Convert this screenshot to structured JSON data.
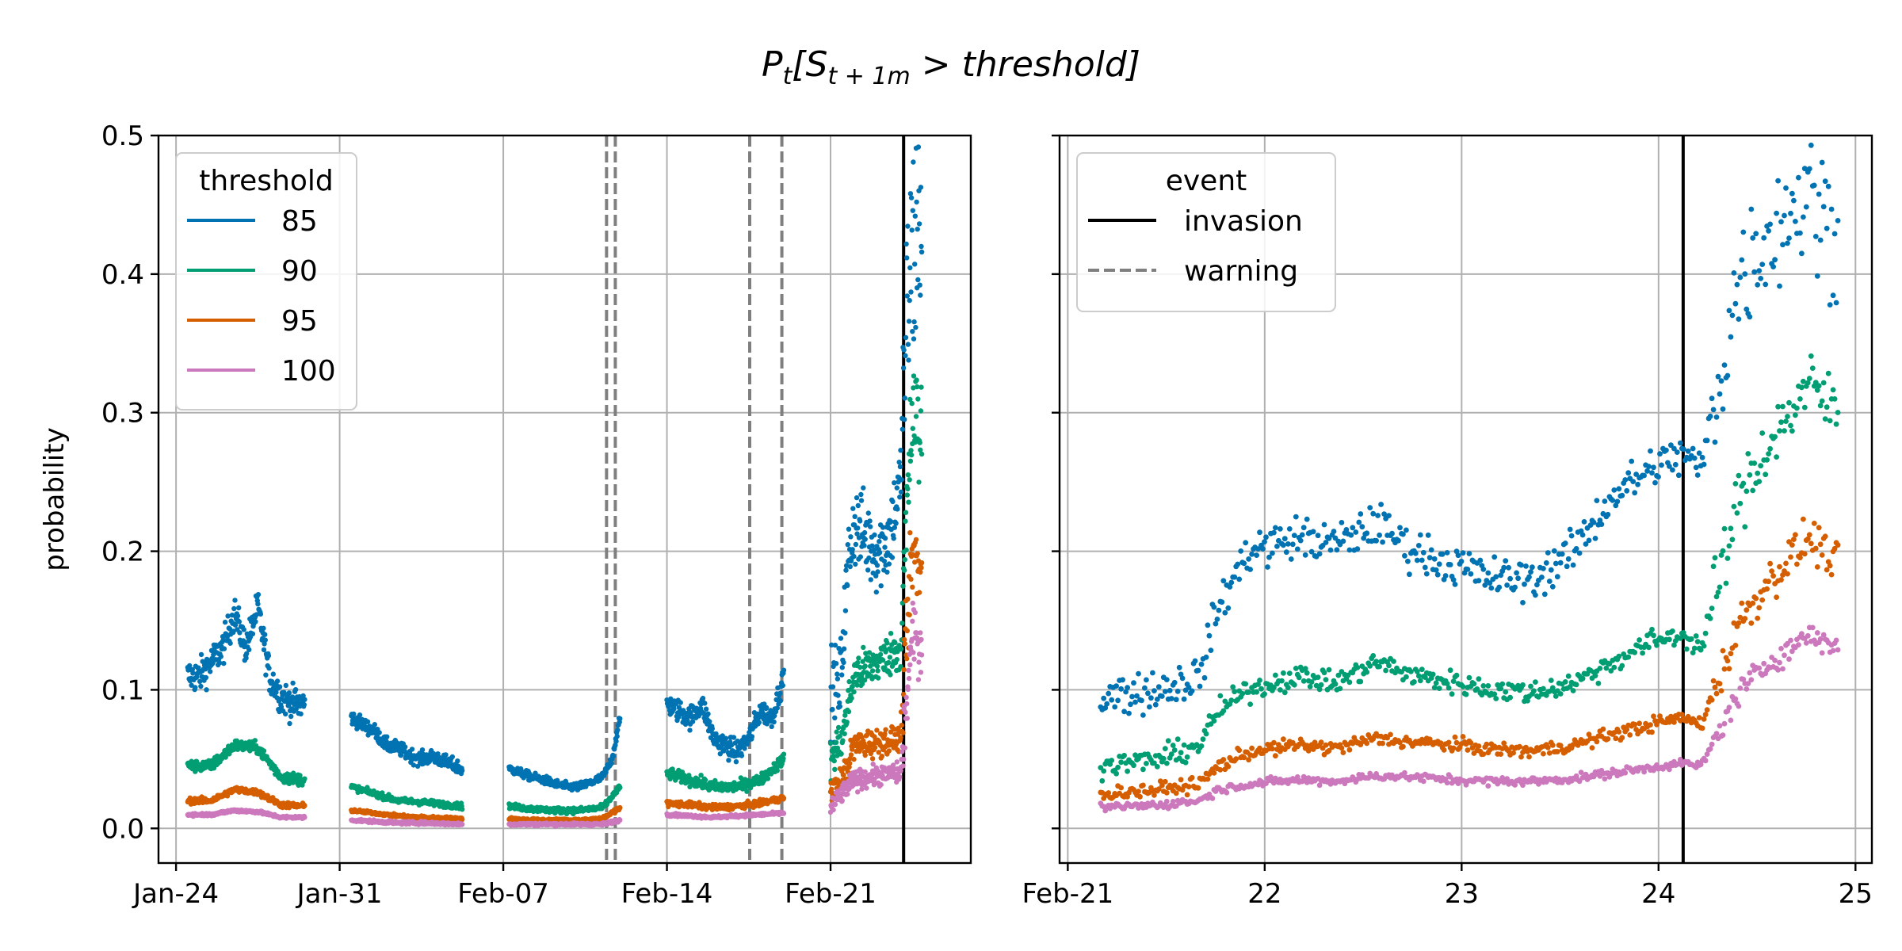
{
  "title": {
    "main": "P",
    "main_sub": "t",
    "bracket_open": "[S",
    "bracket_sub": "t + 1m",
    "tail": " > threshold]"
  },
  "colors": {
    "85": "#0173b2",
    "90": "#029e73",
    "95": "#d55e00",
    "100": "#cc78bc",
    "invasion": "#000000",
    "warning": "#7f7f7f",
    "grid": "#b0b0b0"
  },
  "chart_data": [
    {
      "type": "scatter",
      "panel": "left",
      "ylabel": "probability",
      "ylim": [
        -0.025,
        0.5
      ],
      "xlim": [
        "2022-01-23T06:00",
        "2022-02-27T00:00"
      ],
      "y_ticks": [
        0.0,
        0.1,
        0.2,
        0.3,
        0.4,
        0.5
      ],
      "y_tick_labels": [
        "0.0",
        "0.1",
        "0.2",
        "0.3",
        "0.4",
        "0.5"
      ],
      "x_ticks": [
        "2022-01-24",
        "2022-01-31",
        "2022-02-07",
        "2022-02-14",
        "2022-02-21"
      ],
      "x_tick_labels": [
        "Jan-24",
        "Jan-31",
        "Feb-07",
        "Feb-14",
        "Feb-21"
      ],
      "grid": true,
      "legend": {
        "title": "threshold",
        "placement": "top-left",
        "entries": [
          "85",
          "90",
          "95",
          "100"
        ]
      },
      "events": [
        {
          "type": "warning",
          "x": "2022-02-11T10:00"
        },
        {
          "type": "warning",
          "x": "2022-02-11T19:00"
        },
        {
          "type": "warning",
          "x": "2022-02-17T13:00"
        },
        {
          "type": "warning",
          "x": "2022-02-18T22:00"
        },
        {
          "type": "invasion",
          "x": "2022-02-24T03:00"
        }
      ],
      "series": [
        {
          "name": "85",
          "segments": [
            {
              "start": "2022-01-24T12:00",
              "end": "2022-01-29T12:00",
              "x_days": [
                0,
                0.5,
                1.0,
                1.5,
                2.0,
                2.5,
                3.0,
                3.5,
                4.0,
                4.5,
                5.0
              ],
              "y": [
                0.11,
                0.11,
                0.12,
                0.13,
                0.155,
                0.13,
                0.16,
                0.11,
                0.095,
                0.09,
                0.09
              ],
              "spread": 0.012
            },
            {
              "start": "2022-01-31T12:00",
              "end": "2022-02-05T06:00",
              "x_days": [
                0,
                0.5,
                1.0,
                1.5,
                2.0,
                2.5,
                3.0,
                3.5,
                4.0,
                4.75
              ],
              "y": [
                0.08,
                0.075,
                0.07,
                0.06,
                0.058,
                0.053,
                0.05,
                0.052,
                0.048,
                0.043
              ],
              "spread": 0.005
            },
            {
              "start": "2022-02-07T06:00",
              "end": "2022-02-12T00:00",
              "x_days": [
                0,
                0.5,
                1.0,
                1.5,
                2.0,
                2.5,
                3.0,
                3.5,
                4.0,
                4.4,
                4.75
              ],
              "y": [
                0.043,
                0.04,
                0.037,
                0.035,
                0.032,
                0.03,
                0.03,
                0.033,
                0.037,
                0.05,
                0.08
              ],
              "spread": 0.003
            },
            {
              "start": "2022-02-14T00:00",
              "end": "2022-02-19T00:00",
              "x_days": [
                0,
                0.5,
                1.0,
                1.5,
                2.0,
                2.5,
                3.0,
                3.5,
                4.0,
                4.5,
                5.0
              ],
              "y": [
                0.09,
                0.085,
                0.08,
                0.09,
                0.065,
                0.06,
                0.055,
                0.065,
                0.085,
                0.08,
                0.11
              ],
              "spread": 0.008
            },
            {
              "start": "2022-02-21T00:00",
              "end": "2022-02-24T22:00",
              "x_days": [
                0,
                0.4,
                0.5,
                0.8,
                1.0,
                1.5,
                2.0,
                2.5,
                3.0,
                3.15,
                3.4,
                3.9
              ],
              "y": [
                0.1,
                0.1,
                0.13,
                0.2,
                0.22,
                0.21,
                0.2,
                0.21,
                0.25,
                0.33,
                0.4,
                0.45
              ],
              "spread": 0.03
            }
          ]
        },
        {
          "name": "90",
          "segments": [
            {
              "start": "2022-01-24T12:00",
              "end": "2022-01-29T12:00",
              "x_days": [
                0,
                1.0,
                2.0,
                3.0,
                4.0,
                5.0
              ],
              "y": [
                0.045,
                0.045,
                0.06,
                0.058,
                0.037,
                0.035
              ],
              "spread": 0.004
            },
            {
              "start": "2022-01-31T12:00",
              "end": "2022-02-05T06:00",
              "x_days": [
                0,
                1.0,
                2.0,
                3.0,
                4.75
              ],
              "y": [
                0.03,
                0.025,
                0.02,
                0.019,
                0.016
              ],
              "spread": 0.002
            },
            {
              "start": "2022-02-07T06:00",
              "end": "2022-02-12T00:00",
              "x_days": [
                0,
                1.0,
                2.0,
                3.0,
                4.0,
                4.75
              ],
              "y": [
                0.016,
                0.014,
                0.013,
                0.013,
                0.015,
                0.03
              ],
              "spread": 0.002
            },
            {
              "start": "2022-02-14T00:00",
              "end": "2022-02-19T00:00",
              "x_days": [
                0,
                1.0,
                2.0,
                3.0,
                4.0,
                5.0
              ],
              "y": [
                0.04,
                0.035,
                0.03,
                0.03,
                0.035,
                0.05
              ],
              "spread": 0.004
            },
            {
              "start": "2022-02-21T00:00",
              "end": "2022-02-24T22:00",
              "x_days": [
                0,
                0.5,
                1.0,
                2.0,
                3.0,
                3.2,
                3.5,
                3.9
              ],
              "y": [
                0.05,
                0.065,
                0.11,
                0.12,
                0.13,
                0.2,
                0.3,
                0.28
              ],
              "spread": 0.015
            }
          ]
        },
        {
          "name": "95",
          "segments": [
            {
              "start": "2022-01-24T12:00",
              "end": "2022-01-29T12:00",
              "x_days": [
                0,
                1.0,
                2.0,
                3.0,
                4.0,
                5.0
              ],
              "y": [
                0.02,
                0.02,
                0.028,
                0.026,
                0.017,
                0.016
              ],
              "spread": 0.002
            },
            {
              "start": "2022-01-31T12:00",
              "end": "2022-02-05T06:00",
              "x_days": [
                0,
                1.0,
                2.0,
                3.0,
                4.75
              ],
              "y": [
                0.013,
                0.011,
                0.009,
                0.008,
                0.007
              ],
              "spread": 0.001
            },
            {
              "start": "2022-02-07T06:00",
              "end": "2022-02-12T00:00",
              "x_days": [
                0,
                1.0,
                2.0,
                3.0,
                4.0,
                4.75
              ],
              "y": [
                0.007,
                0.006,
                0.006,
                0.006,
                0.007,
                0.015
              ],
              "spread": 0.001
            },
            {
              "start": "2022-02-14T00:00",
              "end": "2022-02-19T00:00",
              "x_days": [
                0,
                1.0,
                2.0,
                3.0,
                4.0,
                5.0
              ],
              "y": [
                0.018,
                0.017,
                0.015,
                0.016,
                0.018,
                0.022
              ],
              "spread": 0.002
            },
            {
              "start": "2022-02-21T00:00",
              "end": "2022-02-24T22:00",
              "x_days": [
                0,
                0.5,
                1.0,
                2.0,
                3.0,
                3.2,
                3.5,
                3.9
              ],
              "y": [
                0.025,
                0.035,
                0.06,
                0.062,
                0.065,
                0.12,
                0.2,
                0.18
              ],
              "spread": 0.01
            }
          ]
        },
        {
          "name": "100",
          "segments": [
            {
              "start": "2022-01-24T12:00",
              "end": "2022-01-29T12:00",
              "x_days": [
                0,
                1.0,
                2.0,
                3.0,
                4.0,
                5.0
              ],
              "y": [
                0.01,
                0.01,
                0.013,
                0.012,
                0.008,
                0.008
              ],
              "spread": 0.001
            },
            {
              "start": "2022-01-31T12:00",
              "end": "2022-02-05T06:00",
              "x_days": [
                0,
                1.0,
                2.0,
                3.0,
                4.75
              ],
              "y": [
                0.006,
                0.005,
                0.004,
                0.004,
                0.003
              ],
              "spread": 0.001
            },
            {
              "start": "2022-02-07T06:00",
              "end": "2022-02-12T00:00",
              "x_days": [
                0,
                1.0,
                2.0,
                3.0,
                4.0,
                4.75
              ],
              "y": [
                0.003,
                0.003,
                0.003,
                0.003,
                0.003,
                0.006
              ],
              "spread": 0.001
            },
            {
              "start": "2022-02-14T00:00",
              "end": "2022-02-19T00:00",
              "x_days": [
                0,
                1.0,
                2.0,
                3.0,
                4.0,
                5.0
              ],
              "y": [
                0.01,
                0.009,
                0.008,
                0.009,
                0.01,
                0.011
              ],
              "spread": 0.001
            },
            {
              "start": "2022-02-21T00:00",
              "end": "2022-02-24T22:00",
              "x_days": [
                0,
                0.5,
                1.0,
                2.0,
                3.0,
                3.2,
                3.5,
                3.9
              ],
              "y": [
                0.015,
                0.025,
                0.035,
                0.038,
                0.04,
                0.08,
                0.14,
                0.13
              ],
              "spread": 0.007
            }
          ]
        }
      ]
    },
    {
      "type": "scatter",
      "panel": "right",
      "ylim": [
        -0.025,
        0.5
      ],
      "xlim": [
        "2022-02-20T23:00",
        "2022-02-25T02:00"
      ],
      "y_ticks": [
        0.0,
        0.1,
        0.2,
        0.3,
        0.4,
        0.5
      ],
      "x_ticks": [
        "2022-02-21",
        "2022-02-22",
        "2022-02-23",
        "2022-02-24",
        "2022-02-25"
      ],
      "x_tick_labels": [
        "Feb-21",
        "22",
        "23",
        "24",
        "25"
      ],
      "grid": true,
      "legend": {
        "title": "event",
        "placement": "top-left",
        "entries": [
          "invasion",
          "warning"
        ]
      },
      "events": [
        {
          "type": "invasion",
          "x": "2022-02-24T03:00"
        }
      ],
      "series": [
        {
          "name": "85",
          "segments": [
            {
              "start": "2022-02-21T04:00",
              "end": "2022-02-24T22:00",
              "x_days": [
                0,
                0.3,
                0.5,
                0.6,
                0.75,
                1.0,
                1.2,
                1.4,
                1.6,
                1.8,
                2.0,
                2.2,
                2.4,
                2.6,
                2.8,
                2.95,
                3.05,
                3.25,
                3.4,
                3.6,
                3.75
              ],
              "y": [
                0.095,
                0.1,
                0.11,
                0.16,
                0.2,
                0.21,
                0.205,
                0.22,
                0.2,
                0.19,
                0.18,
                0.18,
                0.2,
                0.24,
                0.26,
                0.27,
                0.26,
                0.4,
                0.43,
                0.46,
                0.42
              ],
              "spread": 0.015
            }
          ]
        },
        {
          "name": "90",
          "segments": [
            {
              "start": "2022-02-21T04:00",
              "end": "2022-02-24T22:00",
              "x_days": [
                0,
                0.3,
                0.5,
                0.6,
                0.75,
                1.0,
                1.2,
                1.4,
                1.6,
                1.8,
                2.0,
                2.2,
                2.4,
                2.6,
                2.8,
                2.95,
                3.05,
                3.25,
                3.4,
                3.6,
                3.75
              ],
              "y": [
                0.045,
                0.05,
                0.06,
                0.085,
                0.1,
                0.11,
                0.105,
                0.12,
                0.11,
                0.105,
                0.1,
                0.098,
                0.105,
                0.12,
                0.135,
                0.14,
                0.13,
                0.24,
                0.28,
                0.32,
                0.3
              ],
              "spread": 0.008
            }
          ]
        },
        {
          "name": "95",
          "segments": [
            {
              "start": "2022-02-21T04:00",
              "end": "2022-02-24T22:00",
              "x_days": [
                0,
                0.3,
                0.5,
                0.6,
                0.75,
                1.0,
                1.2,
                1.4,
                1.6,
                1.8,
                2.0,
                2.2,
                2.4,
                2.6,
                2.8,
                2.95,
                3.05,
                3.25,
                3.4,
                3.6,
                3.75
              ],
              "y": [
                0.025,
                0.028,
                0.032,
                0.045,
                0.055,
                0.06,
                0.058,
                0.065,
                0.062,
                0.06,
                0.057,
                0.056,
                0.06,
                0.068,
                0.075,
                0.08,
                0.075,
                0.15,
                0.18,
                0.21,
                0.19
              ],
              "spread": 0.005
            }
          ]
        },
        {
          "name": "100",
          "segments": [
            {
              "start": "2022-02-21T04:00",
              "end": "2022-02-24T22:00",
              "x_days": [
                0,
                0.3,
                0.5,
                0.6,
                0.75,
                1.0,
                1.2,
                1.4,
                1.6,
                1.8,
                2.0,
                2.2,
                2.4,
                2.6,
                2.8,
                2.95,
                3.05,
                3.25,
                3.4,
                3.6,
                3.75
              ],
              "y": [
                0.015,
                0.017,
                0.02,
                0.028,
                0.032,
                0.035,
                0.034,
                0.038,
                0.037,
                0.035,
                0.034,
                0.034,
                0.036,
                0.04,
                0.044,
                0.047,
                0.045,
                0.1,
                0.12,
                0.14,
                0.13
              ],
              "spread": 0.003
            }
          ]
        }
      ]
    }
  ]
}
